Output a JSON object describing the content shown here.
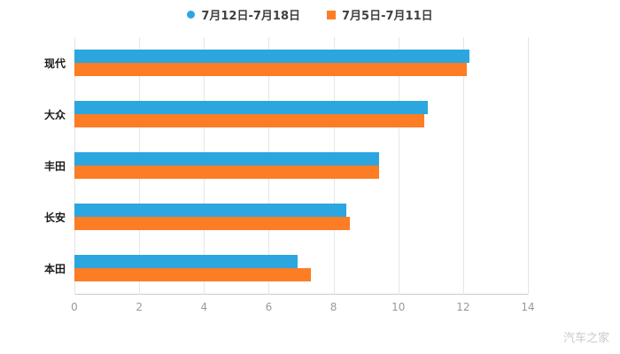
{
  "watermark": "汽车之家",
  "chart_data": {
    "type": "bar",
    "orientation": "horizontal",
    "title": "",
    "xlabel": "",
    "ylabel": "",
    "categories": [
      "现代",
      "大众",
      "丰田",
      "长安",
      "本田"
    ],
    "series": [
      {
        "name": "7月12日-7月18日",
        "marker": "circle",
        "color": "#2ca6df",
        "values": [
          12.2,
          10.9,
          9.4,
          8.4,
          6.9
        ]
      },
      {
        "name": "7月5日-7月11日",
        "marker": "square",
        "color": "#fc7d24",
        "values": [
          12.1,
          10.8,
          9.4,
          8.5,
          7.3
        ]
      }
    ],
    "xlim": [
      0,
      14
    ],
    "xticks": [
      0,
      2,
      4,
      6,
      8,
      10,
      12,
      14
    ],
    "grid": true,
    "legend_position": "top",
    "grid_color": "#e6e6e6",
    "axis_color": "#cccccc",
    "tick_label_color": "#999999",
    "category_label_color": "#1a1a1a"
  }
}
